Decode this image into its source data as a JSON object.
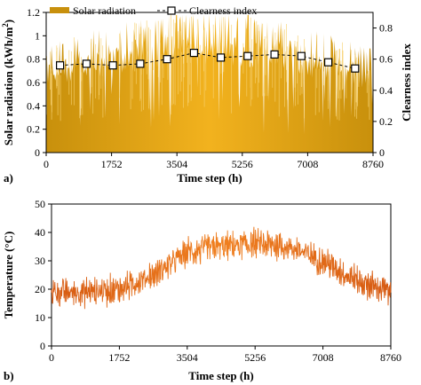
{
  "chart_data": [
    {
      "panel_label": "a)",
      "type": "area",
      "title": "",
      "xlabel": "Time step (h)",
      "ylabel": "Solar radiation (kWh/m²)",
      "ylabel_secondary": "Clearness index",
      "xlim": [
        0,
        8760
      ],
      "ylim": [
        0,
        1.2
      ],
      "ylim_secondary": [
        0,
        0.9
      ],
      "x_ticks": [
        "0",
        "1752",
        "3504",
        "5256",
        "7008",
        "8760"
      ],
      "y_ticks": [
        "0",
        "0.2",
        "0.4",
        "0.6",
        "0.8",
        "1",
        "1.2"
      ],
      "y2_ticks": [
        "0",
        "0.2",
        "0.4",
        "0.6",
        "0.8"
      ],
      "legend": {
        "position": "top-left",
        "series_label": "Solar radiation",
        "marker_label": "Clearness index"
      },
      "colors": {
        "area": "#C8900C",
        "area_light": "#F0B020",
        "marker_line": "#000000"
      },
      "solar_envelope": {
        "x": [
          0,
          730,
          1460,
          2190,
          2920,
          3650,
          4380,
          5110,
          5840,
          6570,
          7300,
          8030,
          8760
        ],
        "peak": [
          0.82,
          0.9,
          0.95,
          1.0,
          1.05,
          1.1,
          1.1,
          1.08,
          1.05,
          1.0,
          0.92,
          0.85,
          0.8
        ]
      },
      "clearness_index": {
        "x": [
          372,
          1080,
          1788,
          2520,
          3240,
          3960,
          4680,
          5400,
          6120,
          6840,
          7560,
          8280
        ],
        "values": [
          0.56,
          0.57,
          0.56,
          0.57,
          0.6,
          0.64,
          0.61,
          0.62,
          0.63,
          0.62,
          0.58,
          0.54
        ]
      }
    },
    {
      "panel_label": "b)",
      "type": "line",
      "title": "",
      "xlabel": "Time step (h)",
      "ylabel": "Temperature (°C)",
      "xlim": [
        0,
        8760
      ],
      "ylim": [
        0,
        50
      ],
      "x_ticks": [
        "0",
        "1752",
        "3504",
        "5256",
        "7008",
        "8760"
      ],
      "y_ticks": [
        "0",
        "10",
        "20",
        "30",
        "40",
        "50"
      ],
      "colors": {
        "line": "#E86A1A"
      },
      "temperature_trend": {
        "x": [
          0,
          876,
          1752,
          2628,
          3504,
          4380,
          5256,
          6132,
          7008,
          7884,
          8760
        ],
        "values": [
          19,
          19,
          20,
          25,
          33,
          35,
          36,
          35,
          30,
          23,
          19
        ]
      }
    }
  ]
}
